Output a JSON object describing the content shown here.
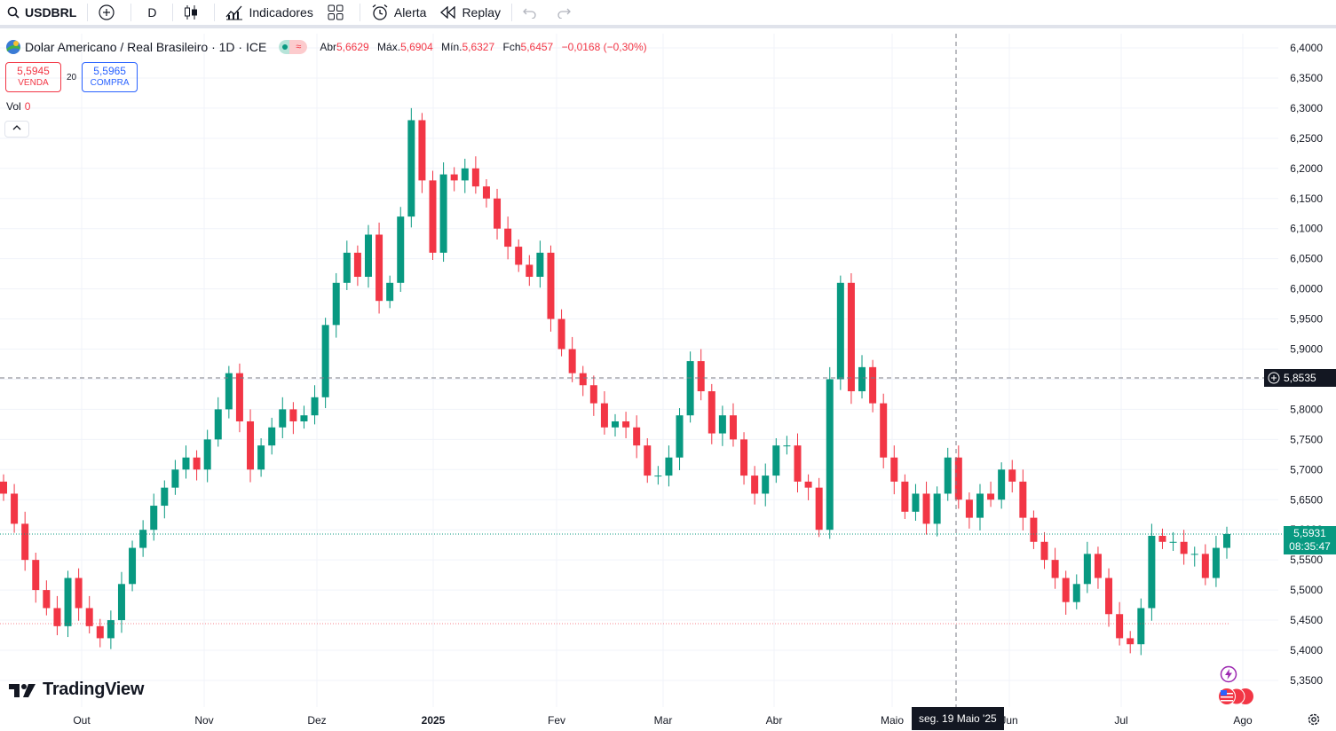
{
  "toolbar": {
    "symbol": "USDBRL",
    "interval": "D",
    "indicators_label": "Indicadores",
    "alert_label": "Alerta",
    "replay_label": "Replay"
  },
  "legend": {
    "title": "Dolar Americano / Real Brasileiro · 1D · ICE",
    "open_label": "Abr",
    "open": "5,6629",
    "high_label": "Máx.",
    "high": "5,6904",
    "low_label": "Mín.",
    "low": "5,6327",
    "close_label": "Fch",
    "close": "5,6457",
    "change": "−0,0168 (−0,30%)"
  },
  "quotes": {
    "sell_price": "5,5945",
    "sell_label": "VENDA",
    "spread": "20",
    "buy_price": "5,5965",
    "buy_label": "COMPRA"
  },
  "volume": {
    "label": "Vol",
    "value": "0"
  },
  "crosshair": {
    "price_label": "5,8535",
    "time_label": "seg. 19 Maio '25"
  },
  "last_price": {
    "price": "5,5931",
    "countdown": "08:35:47"
  },
  "brand": {
    "name": "TradingView"
  },
  "colors": {
    "up": "#089981",
    "down": "#f23645",
    "text": "#131722",
    "grid": "#f0f3fa"
  },
  "chart_data": {
    "type": "candlestick",
    "title": "Dolar Americano / Real Brasileiro · 1D · ICE",
    "y_ticks": [
      "6,4000",
      "6,3500",
      "6,3000",
      "6,2500",
      "6,2000",
      "6,1500",
      "6,1000",
      "6,0500",
      "6,0000",
      "5,9500",
      "5,9000",
      "5,8500",
      "5,8000",
      "5,7500",
      "5,7000",
      "5,6500",
      "5,6000",
      "5,5500",
      "5,5000",
      "5,4500",
      "5,4000",
      "5,3500"
    ],
    "x_ticks": [
      "Out",
      "Nov",
      "Dez",
      "2025",
      "Fev",
      "Mar",
      "Abr",
      "Maio",
      "Jun",
      "Jul",
      "Ago"
    ],
    "ylim": [
      5.33,
      6.42
    ],
    "series_close": [
      5.66,
      5.61,
      5.55,
      5.5,
      5.47,
      5.44,
      5.52,
      5.47,
      5.44,
      5.42,
      5.45,
      5.51,
      5.57,
      5.6,
      5.64,
      5.67,
      5.7,
      5.72,
      5.7,
      5.75,
      5.8,
      5.86,
      5.78,
      5.7,
      5.74,
      5.77,
      5.8,
      5.78,
      5.79,
      5.82,
      5.94,
      6.01,
      6.06,
      6.02,
      6.09,
      5.98,
      6.01,
      6.12,
      6.28,
      6.18,
      6.06,
      6.19,
      6.18,
      6.2,
      6.17,
      6.15,
      6.1,
      6.07,
      6.04,
      6.02,
      6.06,
      5.95,
      5.9,
      5.86,
      5.84,
      5.81,
      5.77,
      5.78,
      5.77,
      5.74,
      5.69,
      5.69,
      5.72,
      5.79,
      5.88,
      5.83,
      5.76,
      5.79,
      5.75,
      5.69,
      5.66,
      5.69,
      5.74,
      5.74,
      5.68,
      5.67,
      5.6,
      5.85,
      6.01,
      5.83,
      5.87,
      5.81,
      5.72,
      5.68,
      5.63,
      5.66,
      5.61,
      5.66,
      5.72,
      5.65,
      5.62,
      5.66,
      5.65,
      5.7,
      5.68,
      5.62,
      5.58,
      5.55,
      5.52,
      5.48,
      5.51,
      5.56,
      5.52,
      5.46,
      5.42,
      5.41,
      5.47,
      5.59,
      5.58,
      5.58,
      5.56,
      5.56,
      5.52,
      5.57,
      5.593
    ]
  }
}
